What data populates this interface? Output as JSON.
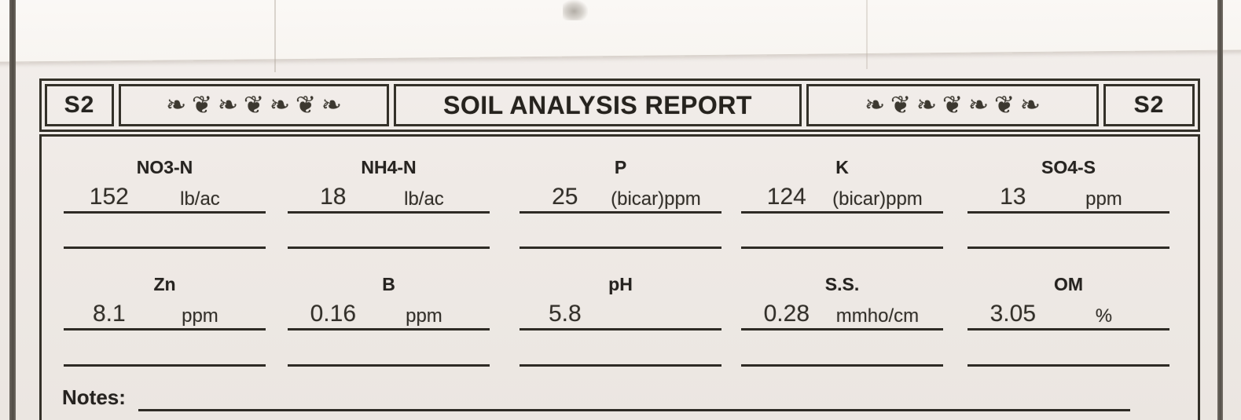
{
  "report": {
    "title": "SOIL ANALYSIS REPORT",
    "sample_id_left": "S2",
    "sample_id_right": "S2",
    "ornament": "❧❦❧❦❧❦❧",
    "notes_label": "Notes:"
  },
  "results": {
    "row1": [
      {
        "label": "NO3-N",
        "value": "152",
        "unit": "lb/ac"
      },
      {
        "label": "NH4-N",
        "value": "18",
        "unit": "lb/ac"
      },
      {
        "label": "P",
        "value": "25",
        "unit": "(bicar)ppm"
      },
      {
        "label": "K",
        "value": "124",
        "unit": "(bicar)ppm"
      },
      {
        "label": "SO4-S",
        "value": "13",
        "unit": "ppm"
      }
    ],
    "row2": [
      {
        "label": "Zn",
        "value": "8.1",
        "unit": "ppm"
      },
      {
        "label": "B",
        "value": "0.16",
        "unit": "ppm"
      },
      {
        "label": "pH",
        "value": "5.8",
        "unit": ""
      },
      {
        "label": "S.S.",
        "value": "0.28",
        "unit": "mmho/cm"
      },
      {
        "label": "OM",
        "value": "3.05",
        "unit": "%"
      }
    ]
  },
  "colors": {
    "ink": "#2b2926",
    "border": "#343129",
    "paper": "#efeae6",
    "paper_top_strip": "#f8f5f1",
    "scan_edge": "#54504a"
  }
}
